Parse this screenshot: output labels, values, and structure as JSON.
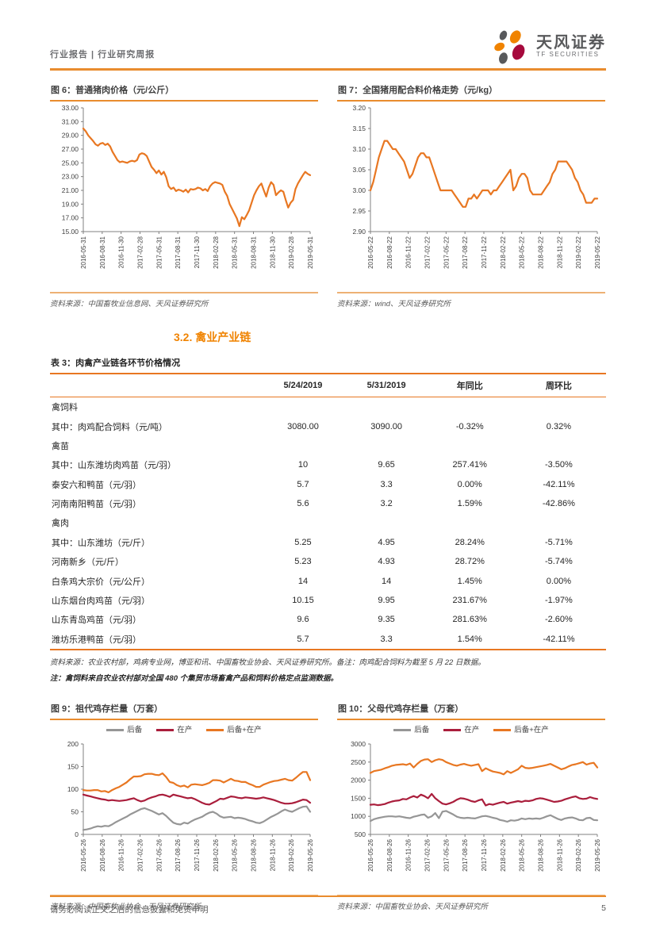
{
  "header": {
    "left": "行业报告 | 行业研究周报",
    "brand": "天风证券",
    "brand_sub": "TF SECURITIES"
  },
  "section_heading": "3.2. 禽业产业链",
  "figures": [
    {
      "source": "资料来源：中国畜牧业信息网、天风证券研究所"
    },
    {
      "source": "资料来源：wind、天风证券研究所"
    },
    {
      "source": "资料来源：中国畜牧业协会、天风证券研究所"
    },
    {
      "source": "资料来源：中国畜牧业协会、天风证券研究所"
    }
  ],
  "table": {
    "title": "表 3：肉禽产业链各环节价格情况",
    "columns": [
      "",
      "5/24/2019",
      "5/31/2019",
      "年同比",
      "周环比"
    ],
    "rows": [
      {
        "label": "禽饲料",
        "indent": 0,
        "category": true,
        "values": [
          "",
          "",
          "",
          ""
        ]
      },
      {
        "label": "其中：肉鸡配合饲料（元/吨）",
        "indent": 1,
        "category": false,
        "values": [
          "3080.00",
          "3090.00",
          "-0.32%",
          "0.32%"
        ]
      },
      {
        "label": "禽苗",
        "indent": 0,
        "category": true,
        "values": [
          "",
          "",
          "",
          ""
        ]
      },
      {
        "label": "其中：山东潍坊肉鸡苗（元/羽）",
        "indent": 1,
        "category": false,
        "values": [
          "10",
          "9.65",
          "257.41%",
          "-3.50%"
        ]
      },
      {
        "label": "泰安六和鸭苗（元/羽）",
        "indent": 0,
        "category": false,
        "values": [
          "5.7",
          "3.3",
          "0.00%",
          "-42.11%"
        ]
      },
      {
        "label": "河南南阳鸭苗（元/羽）",
        "indent": 0,
        "category": false,
        "values": [
          "5.6",
          "3.2",
          "1.59%",
          "-42.86%"
        ]
      },
      {
        "label": "禽肉",
        "indent": 0,
        "category": true,
        "values": [
          "",
          "",
          "",
          ""
        ]
      },
      {
        "label": "其中：山东潍坊（元/斤）",
        "indent": 1,
        "category": false,
        "values": [
          "5.25",
          "4.95",
          "28.24%",
          "-5.71%"
        ]
      },
      {
        "label": "河南新乡（元/斤）",
        "indent": 2,
        "category": false,
        "values": [
          "5.23",
          "4.93",
          "28.72%",
          "-5.74%"
        ]
      },
      {
        "label": "白条鸡大宗价（元/公斤）",
        "indent": 2,
        "category": false,
        "values": [
          "14",
          "14",
          "1.45%",
          "0.00%"
        ]
      },
      {
        "label": "山东烟台肉鸡苗（元/羽）",
        "indent": 2,
        "category": false,
        "values": [
          "10.15",
          "9.95",
          "231.67%",
          "-1.97%"
        ]
      },
      {
        "label": "山东青岛鸡苗（元/羽）",
        "indent": 2,
        "category": false,
        "values": [
          "9.6",
          "9.35",
          "281.63%",
          "-2.60%"
        ]
      },
      {
        "label": "潍坊乐港鸭苗（元/羽）",
        "indent": 2,
        "category": false,
        "values": [
          "5.7",
          "3.3",
          "1.54%",
          "-42.11%"
        ]
      }
    ],
    "source": "资料来源：农业农村部，鸡病专业网，博亚和讯、中国畜牧业协会、天风证券研究所。备注：肉鸡配合饲料为截至 5 月 22 日数据。",
    "note": "注：禽饲料来自农业农村部对全国 480 个集贸市场畜禽产品和饲料价格定点监测数据。"
  },
  "chart_data": [
    {
      "type": "line",
      "title": "图 6：普通猪肉价格（元/公斤）",
      "ylim": [
        15,
        33
      ],
      "ytick_values": [
        15,
        17,
        19,
        21,
        23,
        25,
        27,
        29,
        31,
        33
      ],
      "ytick_labels": [
        "15.00",
        "17.00",
        "19.00",
        "21.00",
        "23.00",
        "25.00",
        "27.00",
        "29.00",
        "31.00",
        "33.00"
      ],
      "x_labels": [
        "2016-05-31",
        "2016-08-31",
        "2016-11-30",
        "2017-02-28",
        "2017-05-31",
        "2017-08-31",
        "2017-11-30",
        "2018-02-28",
        "2018-05-31",
        "2018-08-31",
        "2018-11-30",
        "2019-02-28",
        "2019-05-31"
      ],
      "legend": false,
      "grid": false,
      "series": [
        {
          "name": "普通猪肉价格",
          "color": "#e87722",
          "values": [
            30.0,
            29.6,
            29.0,
            28.6,
            28.2,
            27.7,
            27.5,
            27.8,
            27.9,
            27.6,
            27.8,
            27.4,
            26.6,
            26.0,
            25.4,
            25.1,
            25.2,
            25.1,
            25.0,
            25.2,
            25.3,
            25.2,
            25.4,
            26.2,
            26.4,
            26.3,
            26.0,
            25.2,
            24.4,
            24.0,
            23.5,
            23.9,
            23.3,
            23.7,
            22.9,
            21.6,
            21.2,
            21.4,
            20.9,
            21.1,
            21.0,
            20.8,
            21.1,
            20.7,
            21.2,
            21.1,
            21.2,
            21.4,
            21.3,
            21.0,
            21.2,
            20.9,
            21.6,
            22.0,
            22.2,
            22.1,
            22.0,
            21.8,
            20.8,
            20.2,
            19.0,
            18.3,
            17.6,
            16.9,
            15.8,
            17.1,
            16.8,
            17.4,
            18.1,
            19.2,
            20.3,
            21.0,
            21.6,
            22.0,
            21.0,
            20.1,
            21.4,
            22.2,
            21.8,
            20.3,
            20.7,
            21.0,
            20.8,
            19.6,
            18.5,
            19.2,
            19.6,
            21.2,
            22.0,
            22.6,
            23.2,
            23.7,
            23.4,
            23.2
          ]
        }
      ]
    },
    {
      "type": "line",
      "title": "图 7：全国猪用配合料价格走势（元/kg）",
      "ylim": [
        2.9,
        3.2
      ],
      "ytick_values": [
        2.9,
        2.95,
        3.0,
        3.05,
        3.1,
        3.15,
        3.2
      ],
      "ytick_labels": [
        "2.90",
        "2.95",
        "3.00",
        "3.05",
        "3.10",
        "3.15",
        "3.20"
      ],
      "x_labels": [
        "2016-05-22",
        "2016-08-22",
        "2016-11-22",
        "2017-02-22",
        "2017-05-22",
        "2017-08-22",
        "2017-11-22",
        "2018-02-22",
        "2018-05-22",
        "2018-08-22",
        "2018-11-22",
        "2019-02-22",
        "2019-05-22"
      ],
      "legend": false,
      "grid": false,
      "series": [
        {
          "name": "全国猪用配合料价格",
          "color": "#e87722",
          "values": [
            3.0,
            3.02,
            3.05,
            3.08,
            3.1,
            3.12,
            3.12,
            3.11,
            3.1,
            3.1,
            3.09,
            3.08,
            3.07,
            3.05,
            3.03,
            3.04,
            3.06,
            3.08,
            3.09,
            3.09,
            3.08,
            3.08,
            3.06,
            3.04,
            3.02,
            3.0,
            3.0,
            3.0,
            3.0,
            3.0,
            2.99,
            2.98,
            2.97,
            2.96,
            2.96,
            2.98,
            2.98,
            2.99,
            2.98,
            2.99,
            3.0,
            3.0,
            3.0,
            2.99,
            3.0,
            3.0,
            3.01,
            3.02,
            3.03,
            3.04,
            3.05,
            3.0,
            3.01,
            3.03,
            3.04,
            3.04,
            3.03,
            3.0,
            2.99,
            2.99,
            2.99,
            2.99,
            3.0,
            3.01,
            3.02,
            3.04,
            3.05,
            3.07,
            3.07,
            3.07,
            3.07,
            3.06,
            3.05,
            3.03,
            3.02,
            3.0,
            2.99,
            2.97,
            2.97,
            2.97,
            2.98,
            2.98
          ]
        }
      ]
    },
    {
      "type": "line",
      "title": "图 9：祖代鸡存栏量（万套）",
      "ylim": [
        0,
        200
      ],
      "ytick_values": [
        0,
        50,
        100,
        150,
        200
      ],
      "ytick_labels": [
        "0",
        "50",
        "100",
        "150",
        "200"
      ],
      "x_labels": [
        "2016-05-26",
        "2016-08-26",
        "2016-11-26",
        "2017-02-26",
        "2017-05-26",
        "2017-08-26",
        "2017-11-26",
        "2018-02-26",
        "2018-05-26",
        "2018-08-26",
        "2018-11-26",
        "2019-02-26",
        "2019-05-26"
      ],
      "legend": true,
      "grid": false,
      "series": [
        {
          "name": "后备",
          "color": "#969696",
          "values": [
            10,
            11,
            13,
            16,
            18,
            17,
            19,
            18,
            22,
            27,
            31,
            35,
            39,
            44,
            48,
            52,
            56,
            58,
            55,
            52,
            48,
            44,
            47,
            41,
            33,
            26,
            23,
            22,
            26,
            24,
            29,
            33,
            36,
            39,
            44,
            48,
            50,
            46,
            40,
            37,
            38,
            39,
            36,
            37,
            36,
            34,
            31,
            29,
            26,
            25,
            28,
            33,
            38,
            42,
            46,
            51,
            55,
            52,
            50,
            54,
            58,
            61,
            62,
            50
          ]
        },
        {
          "name": "在产",
          "color": "#aa1e3c",
          "values": [
            88,
            86,
            84,
            82,
            80,
            78,
            77,
            75,
            76,
            75,
            74,
            75,
            76,
            78,
            80,
            76,
            73,
            75,
            79,
            82,
            84,
            87,
            88,
            86,
            83,
            88,
            86,
            84,
            82,
            80,
            81,
            78,
            74,
            70,
            67,
            66,
            70,
            74,
            79,
            78,
            81,
            84,
            83,
            81,
            80,
            82,
            81,
            80,
            79,
            80,
            82,
            80,
            78,
            76,
            73,
            70,
            68,
            68,
            69,
            71,
            74,
            77,
            76,
            70
          ]
        },
        {
          "name": "后备+在产",
          "color": "#e87722",
          "values": [
            98,
            97,
            97,
            98,
            98,
            95,
            96,
            93,
            98,
            102,
            105,
            110,
            115,
            122,
            128,
            128,
            129,
            133,
            134,
            134,
            132,
            131,
            135,
            127,
            116,
            114,
            109,
            106,
            108,
            104,
            110,
            111,
            110,
            109,
            111,
            114,
            120,
            120,
            119,
            115,
            119,
            123,
            119,
            118,
            116,
            116,
            112,
            109,
            105,
            105,
            110,
            113,
            116,
            118,
            119,
            121,
            123,
            120,
            119,
            125,
            132,
            138,
            138,
            120
          ]
        }
      ]
    },
    {
      "type": "line",
      "title": "图 10：父母代鸡存栏量（万套）",
      "ylim": [
        500,
        3000
      ],
      "ytick_values": [
        500,
        1000,
        1500,
        2000,
        2500,
        3000
      ],
      "ytick_labels": [
        "500",
        "1000",
        "1500",
        "2000",
        "2500",
        "3000"
      ],
      "x_labels": [
        "2016-05-26",
        "2016-08-26",
        "2016-11-26",
        "2017-02-26",
        "2017-05-26",
        "2017-08-26",
        "2017-11-26",
        "2018-02-26",
        "2018-05-26",
        "2018-08-26",
        "2018-11-26",
        "2019-02-26",
        "2019-05-26"
      ],
      "legend": true,
      "grid": false,
      "series": [
        {
          "name": "后备",
          "color": "#969696",
          "values": [
            870,
            920,
            950,
            970,
            990,
            1000,
            1000,
            990,
            1000,
            980,
            960,
            950,
            990,
            1010,
            1040,
            1050,
            960,
            1000,
            1090,
            950,
            1130,
            1150,
            1100,
            1050,
            990,
            960,
            950,
            960,
            950,
            940,
            970,
            1000,
            1010,
            990,
            960,
            940,
            900,
            880,
            850,
            890,
            880,
            900,
            940,
            920,
            940,
            930,
            940,
            930,
            960,
            1000,
            1030,
            980,
            930,
            900,
            940,
            960,
            970,
            940,
            900,
            890,
            950,
            960,
            900,
            890
          ]
        },
        {
          "name": "在产",
          "color": "#aa1e3c",
          "values": [
            1320,
            1330,
            1310,
            1320,
            1340,
            1380,
            1410,
            1430,
            1440,
            1480,
            1470,
            1520,
            1560,
            1520,
            1600,
            1560,
            1500,
            1620,
            1500,
            1420,
            1350,
            1330,
            1360,
            1400,
            1460,
            1500,
            1490,
            1460,
            1420,
            1400,
            1440,
            1470,
            1300,
            1340,
            1320,
            1350,
            1380,
            1400,
            1350,
            1380,
            1400,
            1420,
            1400,
            1430,
            1420,
            1440,
            1480,
            1500,
            1490,
            1460,
            1430,
            1400,
            1410,
            1430,
            1470,
            1500,
            1530,
            1550,
            1500,
            1480,
            1490,
            1530,
            1500,
            1480
          ]
        },
        {
          "name": "后备+在产",
          "color": "#e87722",
          "values": [
            2200,
            2250,
            2270,
            2290,
            2330,
            2360,
            2400,
            2420,
            2430,
            2440,
            2420,
            2460,
            2350,
            2450,
            2530,
            2570,
            2580,
            2500,
            2550,
            2580,
            2560,
            2500,
            2460,
            2420,
            2400,
            2430,
            2450,
            2420,
            2400,
            2420,
            2440,
            2250,
            2330,
            2280,
            2240,
            2220,
            2200,
            2160,
            2250,
            2200,
            2250,
            2300,
            2400,
            2340,
            2330,
            2340,
            2360,
            2380,
            2400,
            2420,
            2450,
            2400,
            2350,
            2300,
            2330,
            2380,
            2420,
            2440,
            2470,
            2500,
            2430,
            2460,
            2480,
            2350
          ]
        }
      ]
    }
  ],
  "footer": {
    "disclaimer": "请务必阅读正文之后的信息披露和免责申明",
    "page": "5"
  }
}
